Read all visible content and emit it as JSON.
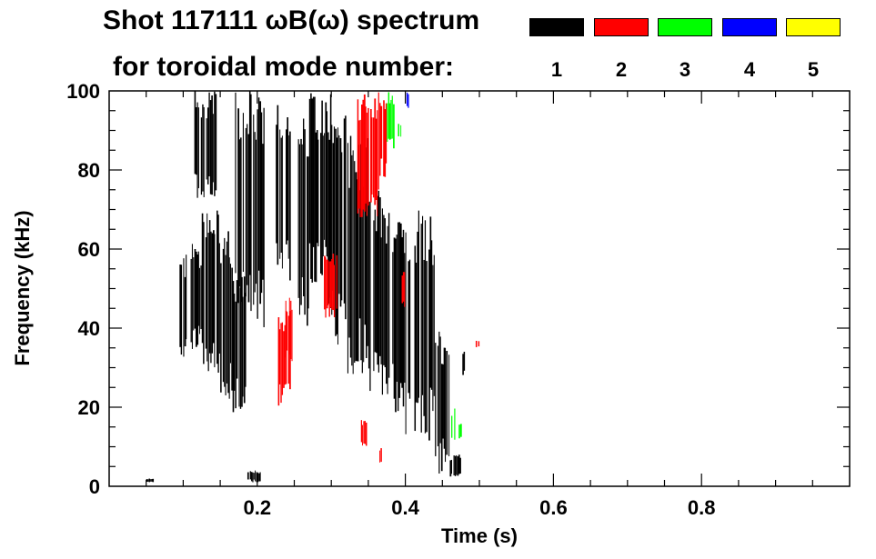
{
  "title_line1": "Shot 117111 ωB(ω) spectrum",
  "title_line2": "for toroidal mode number:",
  "legend": [
    {
      "label": "1",
      "color": "#000000"
    },
    {
      "label": "2",
      "color": "#ff0000"
    },
    {
      "label": "3",
      "color": "#00ff00"
    },
    {
      "label": "4",
      "color": "#0000ff"
    },
    {
      "label": "5",
      "color": "#ffff00"
    }
  ],
  "chart_data": {
    "type": "heatmap",
    "title": "Shot 117111 ωB(ω) spectrum for toroidal mode number: 1 2 3 4 5",
    "xlabel": "Time (s)",
    "ylabel": "Frequency (kHz)",
    "xlim": [
      0.0,
      1.0
    ],
    "ylim": [
      0,
      100
    ],
    "x_ticks": [
      {
        "value": 0.2,
        "label": "0.2"
      },
      {
        "value": 0.4,
        "label": "0.4"
      },
      {
        "value": 0.6,
        "label": "0.6"
      },
      {
        "value": 0.8,
        "label": "0.8"
      }
    ],
    "y_ticks": [
      {
        "value": 0,
        "label": "0"
      },
      {
        "value": 20,
        "label": "20"
      },
      {
        "value": 40,
        "label": "40"
      },
      {
        "value": 60,
        "label": "60"
      },
      {
        "value": 80,
        "label": "80"
      },
      {
        "value": 100,
        "label": "100"
      }
    ],
    "series": [
      {
        "name": "n=1",
        "color": "#000000",
        "regions": [
          {
            "t": [
              0.095,
              0.105
            ],
            "f": [
              30,
              60
            ]
          },
          {
            "t": [
              0.11,
              0.125
            ],
            "f": [
              34,
              62
            ]
          },
          {
            "t": [
              0.125,
              0.15
            ],
            "f": [
              28,
              72
            ]
          },
          {
            "t": [
              0.15,
              0.165
            ],
            "f": [
              22,
              66
            ]
          },
          {
            "t": [
              0.165,
              0.185
            ],
            "f": [
              18,
              56
            ]
          },
          {
            "t": [
              0.115,
              0.145
            ],
            "f": [
              72,
              100
            ]
          },
          {
            "t": [
              0.17,
              0.21
            ],
            "f": [
              40,
              100
            ]
          },
          {
            "t": [
              0.225,
              0.245
            ],
            "f": [
              50,
              100
            ]
          },
          {
            "t": [
              0.255,
              0.27
            ],
            "f": [
              40,
              95
            ]
          },
          {
            "t": [
              0.27,
              0.295
            ],
            "f": [
              50,
              100
            ]
          },
          {
            "t": [
              0.295,
              0.32
            ],
            "f": [
              34,
              100
            ]
          },
          {
            "t": [
              0.32,
              0.35
            ],
            "f": [
              28,
              90
            ]
          },
          {
            "t": [
              0.35,
              0.37
            ],
            "f": [
              22,
              75
            ]
          },
          {
            "t": [
              0.37,
              0.4
            ],
            "f": [
              18,
              72
            ]
          },
          {
            "t": [
              0.4,
              0.44
            ],
            "f": [
              10,
              70
            ]
          },
          {
            "t": [
              0.44,
              0.46
            ],
            "f": [
              3,
              40
            ]
          },
          {
            "t": [
              0.46,
              0.475
            ],
            "f": [
              2,
              8
            ]
          },
          {
            "t": [
              0.185,
              0.205
            ],
            "f": [
              1,
              4
            ]
          },
          {
            "t": [
              0.05,
              0.06
            ],
            "f": [
              1,
              2
            ]
          },
          {
            "t": [
              0.477,
              0.482
            ],
            "f": [
              28,
              35
            ]
          }
        ]
      },
      {
        "name": "n=2",
        "color": "#ff0000",
        "regions": [
          {
            "t": [
              0.335,
              0.365
            ],
            "f": [
              68,
              100
            ]
          },
          {
            "t": [
              0.365,
              0.375
            ],
            "f": [
              78,
              100
            ]
          },
          {
            "t": [
              0.228,
              0.245
            ],
            "f": [
              20,
              45
            ]
          },
          {
            "t": [
              0.238,
              0.248
            ],
            "f": [
              30,
              48
            ]
          },
          {
            "t": [
              0.29,
              0.31
            ],
            "f": [
              42,
              60
            ]
          },
          {
            "t": [
              0.34,
              0.348
            ],
            "f": [
              10,
              17
            ]
          },
          {
            "t": [
              0.365,
              0.368
            ],
            "f": [
              5,
              10
            ]
          },
          {
            "t": [
              0.395,
              0.4
            ],
            "f": [
              45,
              55
            ]
          },
          {
            "t": [
              0.495,
              0.5
            ],
            "f": [
              35,
              37
            ]
          }
        ]
      },
      {
        "name": "n=3",
        "color": "#00ff00",
        "regions": [
          {
            "t": [
              0.375,
              0.385
            ],
            "f": [
              85,
              100
            ]
          },
          {
            "t": [
              0.39,
              0.395
            ],
            "f": [
              88,
              92
            ]
          },
          {
            "t": [
              0.462,
              0.468
            ],
            "f": [
              10,
              20
            ]
          },
          {
            "t": [
              0.472,
              0.476
            ],
            "f": [
              12,
              16
            ]
          }
        ]
      },
      {
        "name": "n=4",
        "color": "#0000ff",
        "regions": [
          {
            "t": [
              0.4,
              0.405
            ],
            "f": [
              95,
              100
            ]
          }
        ]
      },
      {
        "name": "n=5",
        "color": "#ffff00",
        "regions": []
      }
    ]
  }
}
